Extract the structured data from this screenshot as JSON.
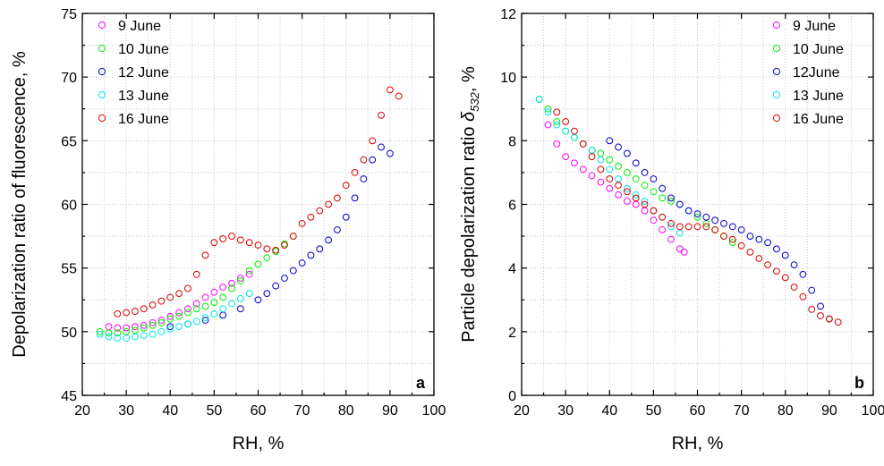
{
  "chart_data": [
    {
      "type": "scatter",
      "panel_label": "a",
      "xlabel": "RH, %",
      "ylabel": "Depolarization ratio of fluorescence, %",
      "xlim": [
        20,
        100
      ],
      "ylim": [
        45,
        75
      ],
      "x_ticks": [
        20,
        30,
        40,
        50,
        60,
        70,
        80,
        90,
        100
      ],
      "y_ticks": [
        45,
        50,
        55,
        60,
        65,
        70,
        75
      ],
      "grid": true,
      "legend_position": "top-left",
      "series": [
        {
          "name": "9 June",
          "color": "#ff00ff",
          "x": [
            26,
            28,
            30,
            32,
            34,
            36,
            38,
            40,
            42,
            44,
            46,
            48,
            50,
            52,
            54,
            56,
            58
          ],
          "y": [
            50.4,
            50.3,
            50.3,
            50.4,
            50.5,
            50.7,
            50.9,
            51.2,
            51.5,
            51.8,
            52.2,
            52.7,
            53.1,
            53.5,
            53.8,
            54.2,
            54.5
          ]
        },
        {
          "name": "10 June",
          "color": "#00ee00",
          "x": [
            24,
            26,
            28,
            30,
            32,
            34,
            36,
            38,
            40,
            42,
            44,
            46,
            48,
            50,
            52,
            54,
            56,
            58,
            60,
            62,
            64,
            66,
            68
          ],
          "y": [
            50.0,
            49.9,
            49.9,
            50.0,
            50.1,
            50.3,
            50.5,
            50.7,
            51.0,
            51.2,
            51.5,
            51.8,
            52.0,
            52.3,
            52.7,
            53.4,
            54.0,
            54.8,
            55.3,
            55.8,
            56.3,
            56.9,
            57.5
          ]
        },
        {
          "name": "12 June",
          "color": "#0000cc",
          "x": [
            40,
            44,
            48,
            52,
            56,
            60,
            62,
            64,
            66,
            68,
            70,
            72,
            74,
            76,
            78,
            80,
            82,
            84,
            86,
            88,
            90
          ],
          "y": [
            50.4,
            50.6,
            50.9,
            51.3,
            51.8,
            52.5,
            53.0,
            53.6,
            54.2,
            54.8,
            55.4,
            56.0,
            56.5,
            57.2,
            58.0,
            59.0,
            60.5,
            62.0,
            63.5,
            64.5,
            64.0
          ]
        },
        {
          "name": "13 June",
          "color": "#00e5e5",
          "x": [
            24,
            26,
            28,
            30,
            32,
            34,
            36,
            38,
            40,
            42,
            44,
            46,
            48,
            50,
            52,
            54,
            56,
            58
          ],
          "y": [
            49.8,
            49.6,
            49.5,
            49.5,
            49.6,
            49.7,
            49.8,
            50.0,
            50.2,
            50.4,
            50.6,
            50.8,
            51.1,
            51.4,
            51.8,
            52.2,
            52.6,
            53.0
          ]
        },
        {
          "name": "16 June",
          "color": "#dd0000",
          "x": [
            28,
            30,
            32,
            34,
            36,
            38,
            40,
            42,
            44,
            46,
            48,
            50,
            52,
            54,
            56,
            58,
            60,
            62,
            64,
            66,
            68,
            70,
            72,
            74,
            76,
            78,
            80,
            82,
            84,
            86,
            88,
            90,
            92
          ],
          "y": [
            51.4,
            51.5,
            51.6,
            51.8,
            52.1,
            52.4,
            52.7,
            53.0,
            53.4,
            54.5,
            56.0,
            57.0,
            57.3,
            57.5,
            57.2,
            57.0,
            56.8,
            56.5,
            56.4,
            56.8,
            57.5,
            58.5,
            59.0,
            59.5,
            60.0,
            60.5,
            61.5,
            62.5,
            63.5,
            65.0,
            67.0,
            69.0,
            68.5
          ]
        }
      ]
    },
    {
      "type": "scatter",
      "panel_label": "b",
      "xlabel": "RH, %",
      "ylabel_prefix": "Particle depolarization ratio ",
      "ylabel_symbol": "δ",
      "ylabel_subscript": "532",
      "ylabel_suffix": ", %",
      "xlim": [
        20,
        100
      ],
      "ylim": [
        0,
        12
      ],
      "x_ticks": [
        20,
        30,
        40,
        50,
        60,
        70,
        80,
        90,
        100
      ],
      "y_ticks": [
        0,
        2,
        4,
        6,
        8,
        10,
        12
      ],
      "grid": true,
      "legend_position": "top-right",
      "series": [
        {
          "name": "9 June",
          "color": "#ff00ff",
          "x": [
            26,
            28,
            30,
            32,
            34,
            36,
            38,
            40,
            42,
            44,
            46,
            48,
            50,
            52,
            54,
            56,
            57
          ],
          "y": [
            8.5,
            7.9,
            7.5,
            7.3,
            7.1,
            6.9,
            6.7,
            6.5,
            6.3,
            6.1,
            6.0,
            5.8,
            5.5,
            5.2,
            4.9,
            4.6,
            4.5
          ]
        },
        {
          "name": "10 June",
          "color": "#00ee00",
          "x": [
            24,
            26,
            28,
            30,
            32,
            34,
            36,
            38,
            40,
            42,
            44,
            46,
            48,
            50,
            52,
            54,
            56,
            58,
            60,
            62,
            64,
            66,
            68
          ],
          "y": [
            9.3,
            9.0,
            8.6,
            8.3,
            8.1,
            7.9,
            7.7,
            7.6,
            7.4,
            7.2,
            7.0,
            6.8,
            6.6,
            6.4,
            6.2,
            6.1,
            6.0,
            5.8,
            5.6,
            5.4,
            5.2,
            5.0,
            4.8
          ]
        },
        {
          "name": "12June",
          "color": "#0000cc",
          "x": [
            40,
            42,
            44,
            46,
            48,
            50,
            52,
            54,
            56,
            58,
            60,
            62,
            64,
            66,
            68,
            70,
            72,
            74,
            76,
            78,
            80,
            82,
            84,
            86,
            88,
            90
          ],
          "y": [
            8.0,
            7.8,
            7.6,
            7.3,
            7.0,
            6.8,
            6.5,
            6.2,
            6.0,
            5.8,
            5.7,
            5.6,
            5.5,
            5.4,
            5.3,
            5.2,
            5.0,
            4.9,
            4.8,
            4.6,
            4.4,
            4.1,
            3.8,
            3.3,
            2.8,
            2.4
          ]
        },
        {
          "name": "13 June",
          "color": "#00e5e5",
          "x": [
            24,
            26,
            28,
            30,
            32,
            34,
            36,
            38,
            40,
            42,
            44,
            46,
            48,
            50,
            52,
            54,
            56
          ],
          "y": [
            9.3,
            8.9,
            8.5,
            8.3,
            8.1,
            7.9,
            7.7,
            7.4,
            7.1,
            6.8,
            6.5,
            6.3,
            6.1,
            5.8,
            5.6,
            5.3,
            5.1
          ]
        },
        {
          "name": "16 June",
          "color": "#dd0000",
          "x": [
            28,
            30,
            32,
            34,
            36,
            38,
            40,
            42,
            44,
            46,
            48,
            50,
            52,
            54,
            56,
            58,
            60,
            62,
            64,
            66,
            68,
            70,
            72,
            74,
            76,
            78,
            80,
            82,
            84,
            86,
            88,
            90,
            92
          ],
          "y": [
            8.9,
            8.6,
            8.3,
            7.9,
            7.5,
            7.1,
            6.8,
            6.6,
            6.4,
            6.2,
            6.0,
            5.8,
            5.6,
            5.4,
            5.3,
            5.3,
            5.3,
            5.3,
            5.2,
            5.0,
            4.9,
            4.7,
            4.5,
            4.3,
            4.1,
            3.9,
            3.7,
            3.4,
            3.1,
            2.7,
            2.5,
            2.4,
            2.3
          ]
        }
      ]
    }
  ]
}
